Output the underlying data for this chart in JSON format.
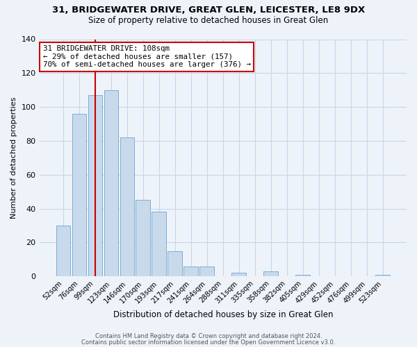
{
  "title1": "31, BRIDGEWATER DRIVE, GREAT GLEN, LEICESTER, LE8 9DX",
  "title2": "Size of property relative to detached houses in Great Glen",
  "xlabel": "Distribution of detached houses by size in Great Glen",
  "ylabel": "Number of detached properties",
  "bar_labels": [
    "52sqm",
    "76sqm",
    "99sqm",
    "123sqm",
    "146sqm",
    "170sqm",
    "193sqm",
    "217sqm",
    "241sqm",
    "264sqm",
    "288sqm",
    "311sqm",
    "335sqm",
    "358sqm",
    "382sqm",
    "405sqm",
    "429sqm",
    "452sqm",
    "476sqm",
    "499sqm",
    "523sqm"
  ],
  "bar_heights": [
    30,
    96,
    107,
    110,
    82,
    45,
    38,
    15,
    6,
    6,
    0,
    2,
    0,
    3,
    0,
    1,
    0,
    0,
    0,
    0,
    1
  ],
  "bar_color": "#c8d9ec",
  "bar_edge_color": "#7bafd4",
  "vline_color": "#cc0000",
  "annotation_line1": "31 BRIDGEWATER DRIVE: 108sqm",
  "annotation_line2": "← 29% of detached houses are smaller (157)",
  "annotation_line3": "70% of semi-detached houses are larger (376) →",
  "ylim": [
    0,
    140
  ],
  "yticks": [
    0,
    20,
    40,
    60,
    80,
    100,
    120,
    140
  ],
  "footer1": "Contains HM Land Registry data © Crown copyright and database right 2024.",
  "footer2": "Contains public sector information licensed under the Open Government Licence v3.0.",
  "bg_color": "#eef3fa",
  "plot_bg_color": "#eef3fa",
  "grid_color": "#c8d5e8"
}
